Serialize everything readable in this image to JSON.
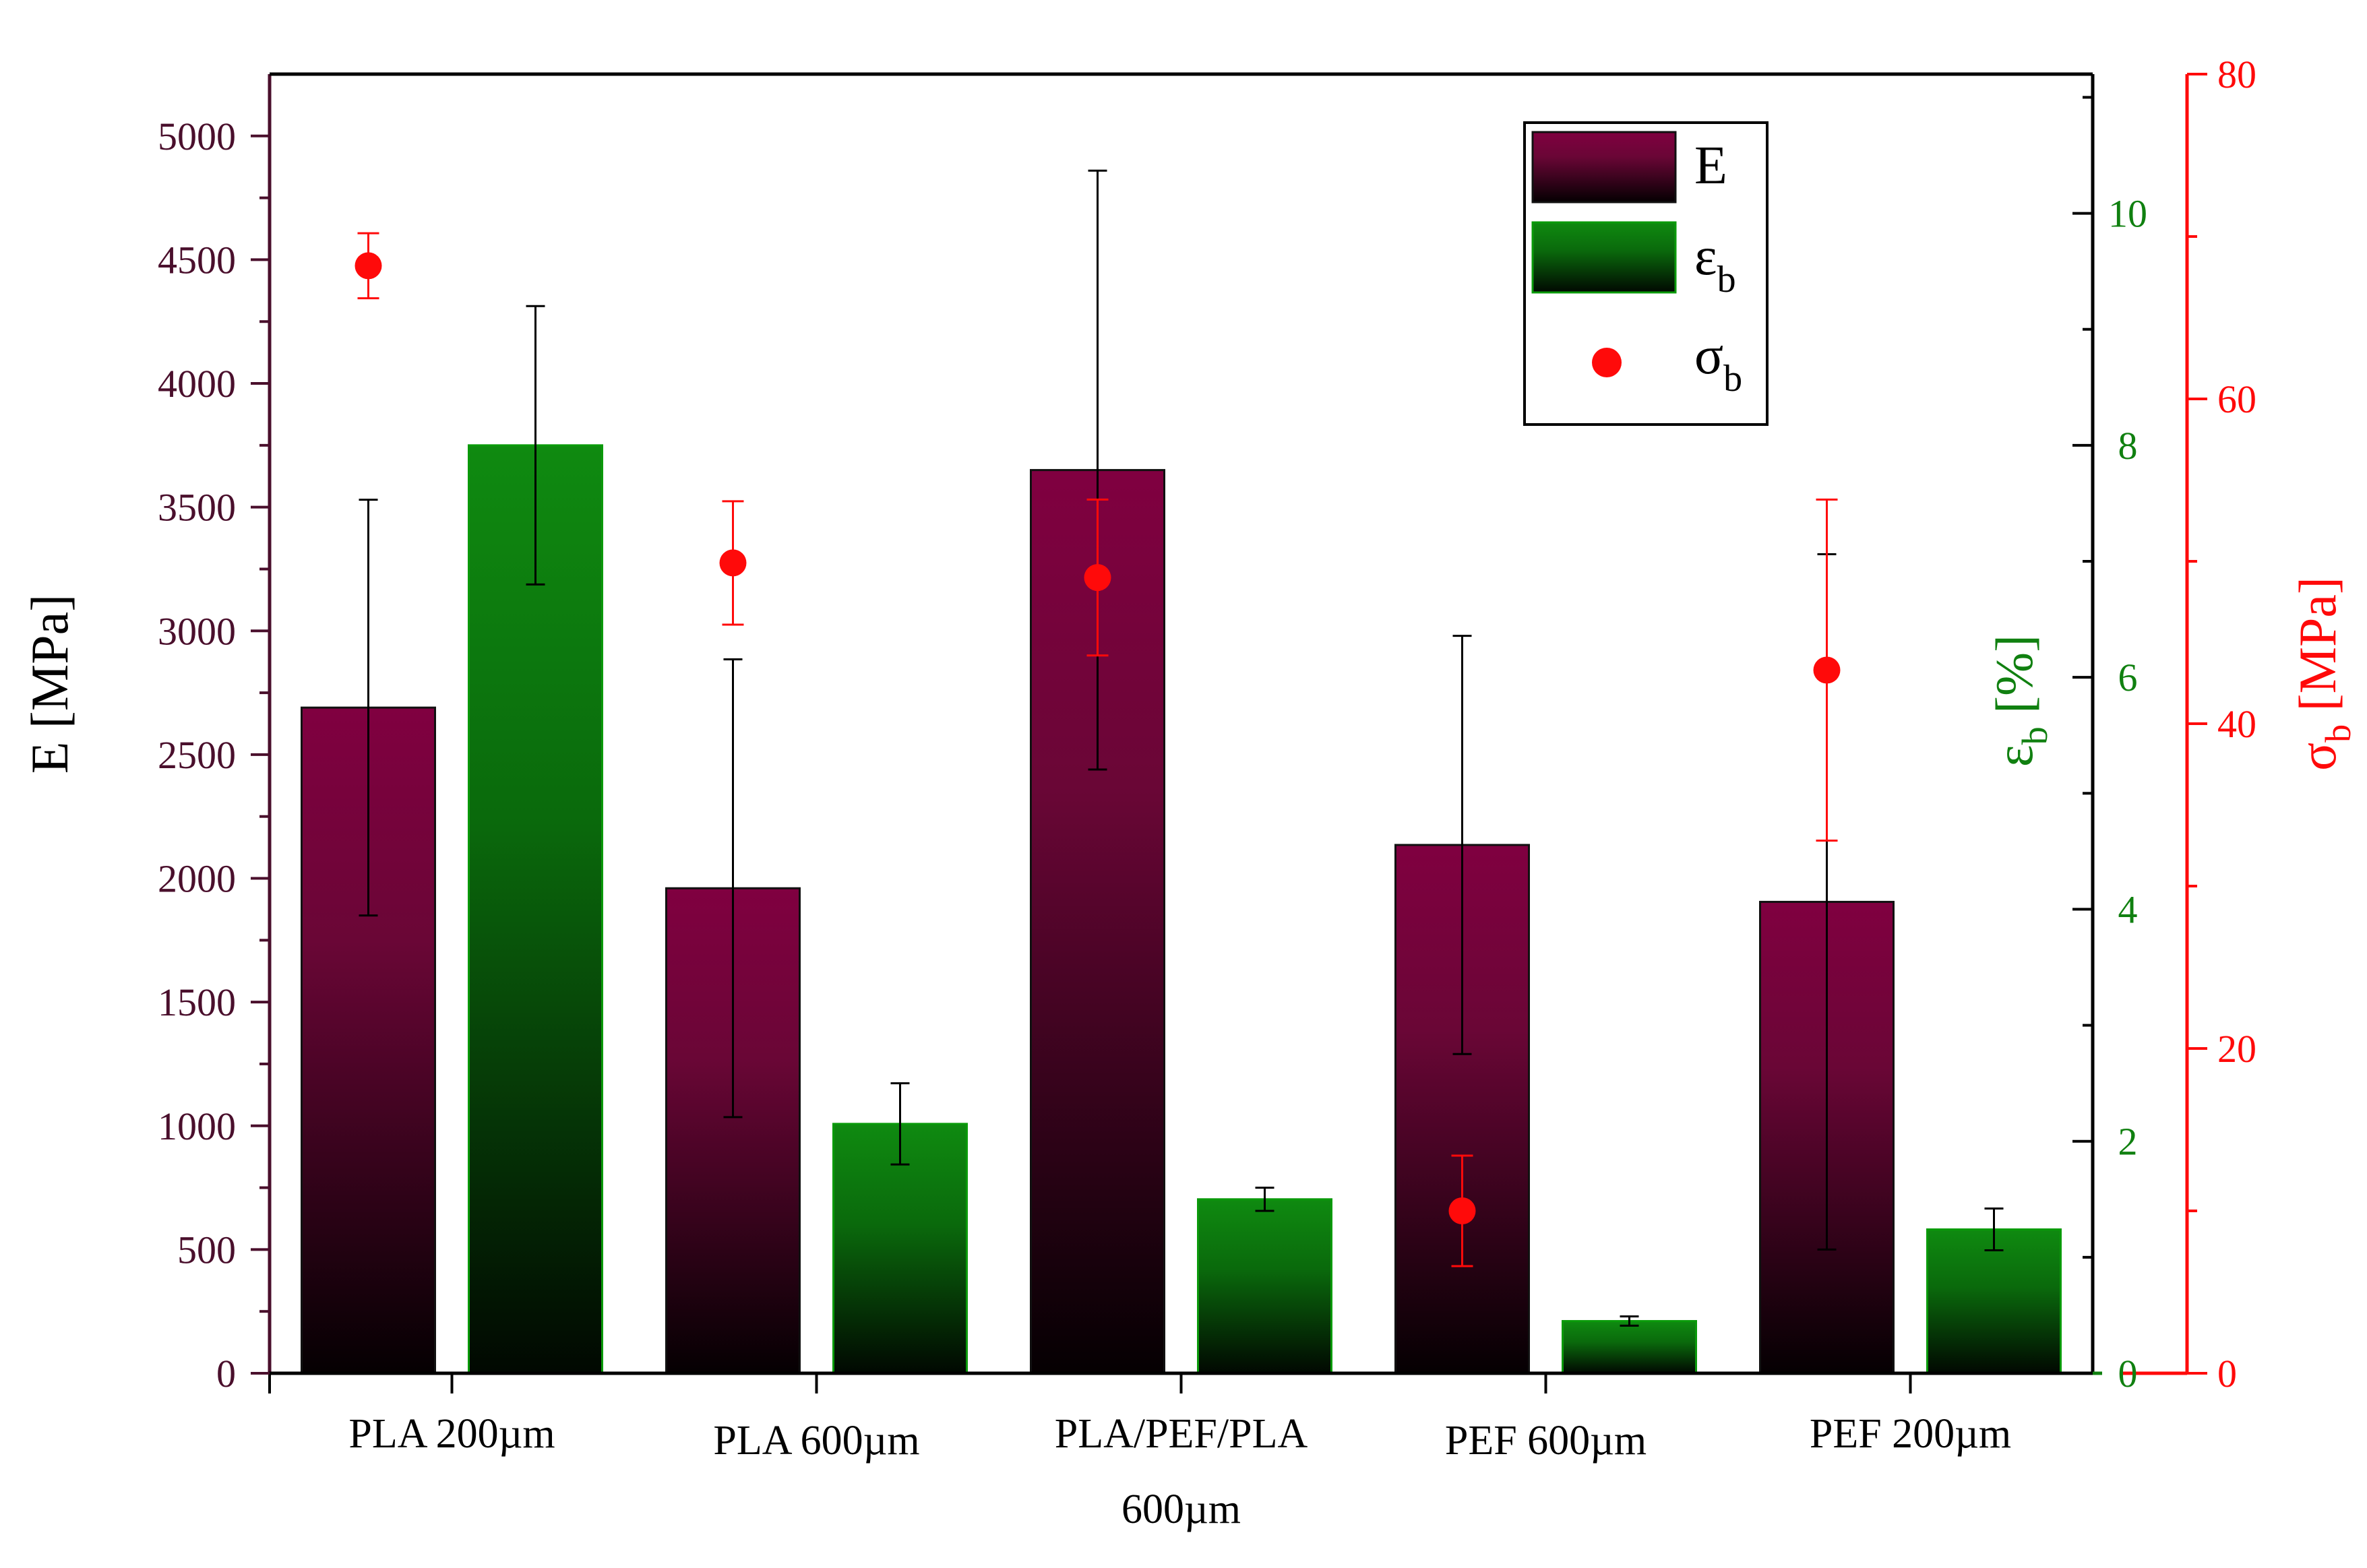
{
  "chart_data": {
    "type": "bar",
    "categories": [
      [
        "PLA 200µm"
      ],
      [
        "PLA 600µm"
      ],
      [
        "PLA/PEF/PLA",
        "600µm"
      ],
      [
        "PEF 600µm"
      ],
      [
        "PEF 200µm"
      ]
    ],
    "series": [
      {
        "name": "E",
        "axis": "left",
        "values": [
          2690,
          1960,
          3650,
          2135,
          1905
        ],
        "errors": [
          840,
          925,
          1210,
          845,
          1405
        ]
      },
      {
        "name": "εb",
        "axis": "right1",
        "values": [
          8.0,
          2.15,
          1.5,
          0.45,
          1.24
        ],
        "errors": [
          1.2,
          0.35,
          0.1,
          0.04,
          0.18
        ]
      },
      {
        "name": "σb",
        "axis": "right2",
        "values": [
          68.2,
          49.9,
          49.0,
          10.0,
          43.3
        ],
        "errors": [
          2.0,
          3.8,
          4.8,
          3.4,
          10.5
        ]
      }
    ],
    "axes": {
      "left": {
        "label_main": "E",
        "label_unit": "[MPa]",
        "ylim": [
          0,
          5250
        ],
        "ticks": [
          0,
          500,
          1000,
          1500,
          2000,
          2500,
          3000,
          3500,
          4000,
          4500,
          5000
        ],
        "color": "#4a0f2c"
      },
      "right1": {
        "label_main": "ε",
        "label_sub": "b",
        "label_unit": "[%]",
        "ylim": [
          0,
          11.2
        ],
        "ticks": [
          0,
          2,
          4,
          6,
          8,
          10
        ],
        "color": "#108010"
      },
      "right2": {
        "label_main": "σ",
        "label_sub": "b",
        "label_unit": "[MPa]",
        "ylim": [
          0,
          80
        ],
        "ticks": [
          0,
          20,
          40,
          60,
          80
        ],
        "color": "#ff0a0a"
      }
    },
    "legend": {
      "position": "top-right",
      "entries": [
        {
          "main": "E",
          "sub": ""
        },
        {
          "main": "ε",
          "sub": "b"
        },
        {
          "main": "σ",
          "sub": "b"
        }
      ]
    },
    "colors": {
      "E": "#7a0a3c",
      "eb": "#108010",
      "sb": "#ff0a0a"
    }
  }
}
